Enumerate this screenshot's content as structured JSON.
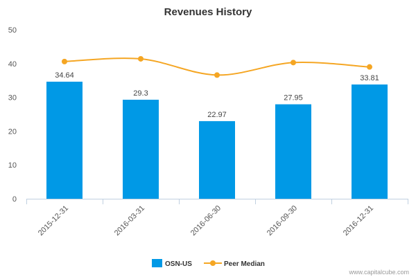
{
  "chart_data": {
    "type": "bar",
    "title": "Revenues History",
    "xlabel": "",
    "ylabel": "",
    "ylim": [
      0,
      50
    ],
    "yticks": [
      "0",
      "10",
      "20",
      "30",
      "40",
      "50"
    ],
    "grid": false,
    "legend_position": "bottom-center",
    "categories": [
      "2015-12-31",
      "2016-03-31",
      "2016-06-30",
      "2016-09-30",
      "2016-12-31"
    ],
    "series": [
      {
        "name": "OSN-US",
        "type": "bar",
        "color": "#0099e6",
        "values": [
          34.64,
          29.3,
          22.97,
          27.95,
          33.81
        ],
        "labels": [
          "34.64",
          "29.3",
          "22.97",
          "27.95",
          "33.81"
        ]
      },
      {
        "name": "Peer Median",
        "type": "line",
        "color": "#f5a623",
        "values": [
          40.6,
          41.4,
          36.6,
          40.3,
          39.0
        ]
      }
    ],
    "credit": "www.capitalcube.com"
  }
}
